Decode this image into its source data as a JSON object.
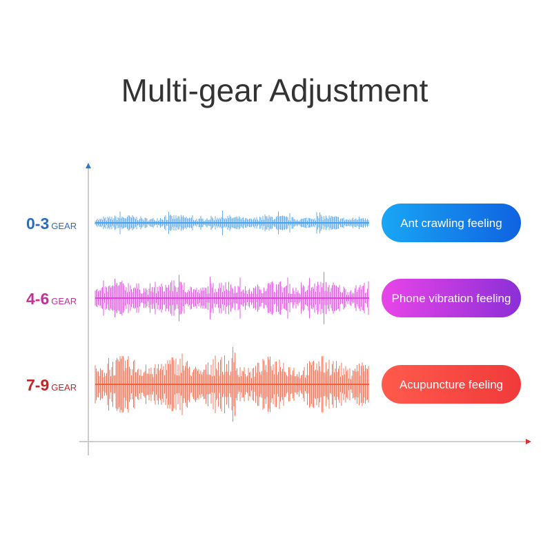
{
  "header": {
    "title": "Multi-gear Adjustment"
  },
  "rows": [
    {
      "range": "0-3",
      "unit": "GEAR",
      "label": "Ant crawling feeling"
    },
    {
      "range": "4-6",
      "unit": "GEAR",
      "label": "Phone vibration feeling"
    },
    {
      "range": "7-9",
      "unit": "GEAR",
      "label": "Acupuncture feeling"
    }
  ]
}
